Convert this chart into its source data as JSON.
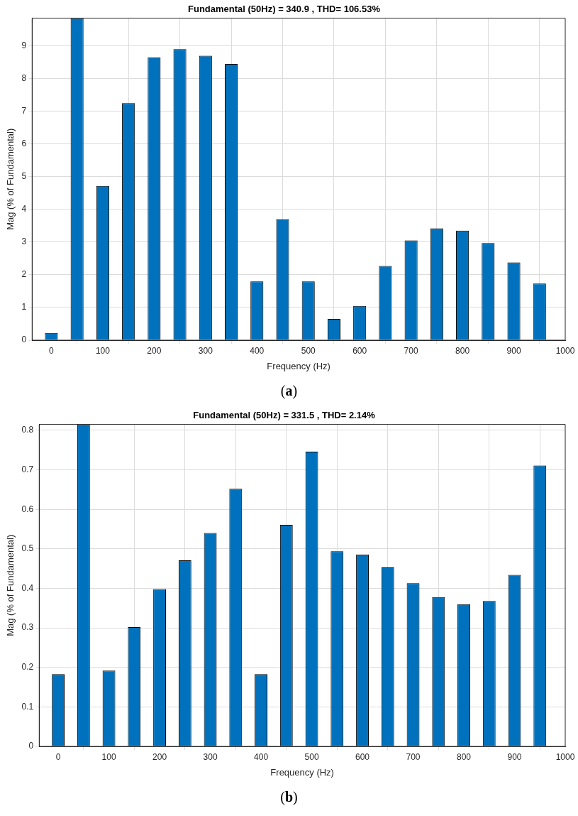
{
  "chart_data": [
    {
      "type": "bar",
      "title": "Fundamental (50Hz) = 340.9 , THD= 106.53%",
      "xlabel": "Frequency (Hz)",
      "ylabel": "Mag (% of Fundamental)",
      "x": [
        0,
        50,
        100,
        150,
        200,
        250,
        300,
        350,
        400,
        450,
        500,
        550,
        600,
        650,
        700,
        750,
        800,
        850,
        900,
        950
      ],
      "values": [
        0.22,
        9.85,
        4.72,
        7.25,
        8.65,
        8.9,
        8.7,
        8.45,
        1.8,
        3.7,
        1.8,
        0.65,
        1.05,
        2.27,
        3.05,
        3.42,
        3.35,
        2.97,
        2.38,
        1.73
      ],
      "color": "#0072bd",
      "xlim": [
        -37.5,
        1000
      ],
      "ylim": [
        0,
        9.85
      ],
      "xticks": [
        0,
        100,
        200,
        300,
        400,
        500,
        600,
        700,
        800,
        900,
        1000
      ],
      "yticks": [
        0,
        1,
        2,
        3,
        4,
        5,
        6,
        7,
        8,
        9
      ],
      "grid": true,
      "annotations": [
        "(a)"
      ]
    },
    {
      "type": "bar",
      "title": "Fundamental (50Hz) = 331.5 , THD= 2.14%",
      "xlabel": "Frequency (Hz)",
      "ylabel": "Mag (% of Fundamental)",
      "x": [
        0,
        50,
        100,
        150,
        200,
        250,
        300,
        350,
        400,
        450,
        500,
        550,
        600,
        650,
        700,
        750,
        800,
        850,
        900,
        950
      ],
      "values": [
        0.183,
        0.815,
        0.192,
        0.302,
        0.398,
        0.471,
        0.54,
        0.652,
        0.183,
        0.561,
        0.746,
        0.494,
        0.486,
        0.453,
        0.413,
        0.378,
        0.36,
        0.368,
        0.434,
        0.711
      ],
      "color": "#0072bd",
      "xlim": [
        -37.5,
        1000
      ],
      "ylim": [
        0,
        0.815
      ],
      "xticks": [
        0,
        100,
        200,
        300,
        400,
        500,
        600,
        700,
        800,
        900,
        1000
      ],
      "yticks": [
        0,
        0.1,
        0.2,
        0.3,
        0.4,
        0.5,
        0.6,
        0.7,
        0.8
      ],
      "grid": true,
      "annotations": [
        "(b)"
      ]
    }
  ]
}
